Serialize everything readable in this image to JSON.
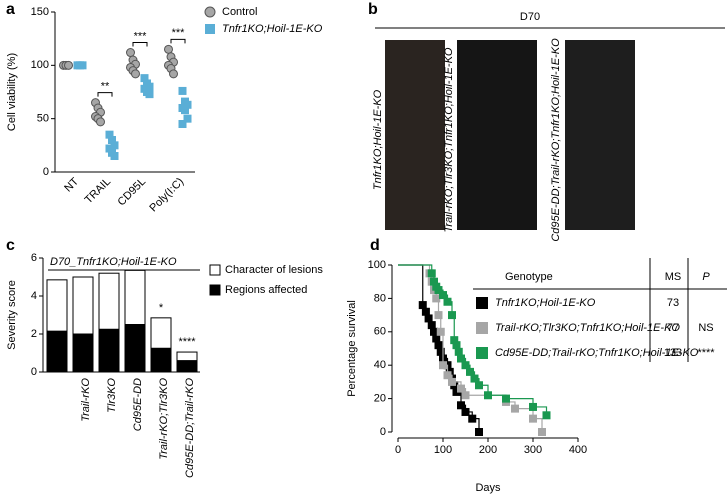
{
  "panel_letters": [
    "a",
    "b",
    "c",
    "d"
  ],
  "chart_data": [
    {
      "type": "dotplot",
      "y_label": "Cell viability (%)",
      "categories": [
        "NT",
        "TRAIL",
        "CD95L",
        "Poly(I:C)"
      ],
      "series": [
        {
          "name": "Control",
          "color": "#a6a6a6",
          "marker": "circle",
          "values": [
            [
              100,
              100,
              100
            ],
            [
              65,
              60,
              56,
              52,
              50,
              47
            ],
            [
              112,
              105,
              101,
              98,
              95,
              92
            ],
            [
              115,
              108,
              103,
              100,
              97,
              92
            ]
          ]
        },
        {
          "name": "Tnfr1KO;Hoil-1E-KO",
          "color": "#5aaed6",
          "marker": "square",
          "values": [
            [
              100,
              100,
              100
            ],
            [
              35,
              30,
              25,
              22,
              18,
              15
            ],
            [
              88,
              83,
              80,
              78,
              75,
              73
            ],
            [
              76,
              66,
              63,
              60,
              58,
              50,
              45
            ]
          ]
        }
      ],
      "ylim": [
        0,
        150
      ],
      "yticks": [
        0,
        50,
        100,
        150
      ],
      "annotations": [
        {
          "text": "**",
          "category": 1
        },
        {
          "text": "***",
          "category": 2
        },
        {
          "text": "***",
          "category": 3
        }
      ]
    },
    {
      "type": "stacked-bar",
      "title": "D70_Tnfr1KO;Hoil-1E-KO",
      "y_label": "Severity score",
      "categories": [
        null,
        "Trail-rKO",
        "Tlr3KO",
        "Cd95E-DD",
        "Trail-rKO;Tlr3KO",
        "Cd95E-DD;Trail-rKO"
      ],
      "series": [
        {
          "name": "Regions affected",
          "color": "#000000",
          "values": [
            2.15,
            2.0,
            2.25,
            2.5,
            1.25,
            0.6
          ]
        },
        {
          "name": "Character of lesions",
          "color": "#ffffff",
          "values": [
            2.7,
            3.0,
            2.95,
            2.85,
            1.6,
            0.45
          ]
        }
      ],
      "ylim": [
        0,
        6
      ],
      "yticks": [
        0,
        2,
        4,
        6
      ],
      "annotations": [
        {
          "text": "*",
          "category": 4
        },
        {
          "text": "****",
          "category": 5
        }
      ]
    },
    {
      "type": "survival",
      "x_label": "Days",
      "y_label": "Percentage survival",
      "xlim": [
        0,
        400
      ],
      "xticks": [
        0,
        100,
        200,
        300,
        400
      ],
      "ylim": [
        0,
        100
      ],
      "yticks": [
        0,
        20,
        40,
        60,
        80,
        100
      ],
      "series": [
        {
          "color": "#000000",
          "x": [
            0,
            55,
            62,
            68,
            75,
            80,
            85,
            90,
            95,
            100,
            110,
            115,
            120,
            125,
            130,
            140,
            150,
            165,
            180
          ],
          "values": [
            100,
            76,
            72,
            68,
            64,
            60,
            56,
            52,
            48,
            44,
            40,
            36,
            32,
            28,
            24,
            16,
            12,
            8,
            0
          ]
        },
        {
          "color": "#a6a6a6",
          "x": [
            0,
            70,
            75,
            80,
            85,
            90,
            95,
            100,
            110,
            120,
            140,
            150,
            240,
            260,
            300,
            320
          ],
          "values": [
            100,
            95,
            90,
            85,
            80,
            70,
            60,
            40,
            34,
            30,
            26,
            22,
            18,
            14,
            8,
            0
          ]
        },
        {
          "color": "#1a9850",
          "x": [
            0,
            75,
            80,
            85,
            90,
            100,
            110,
            120,
            125,
            130,
            135,
            140,
            150,
            160,
            170,
            180,
            200,
            240,
            300,
            330
          ],
          "values": [
            100,
            95,
            90,
            87,
            85,
            82,
            78,
            70,
            55,
            52,
            48,
            44,
            40,
            36,
            32,
            28,
            22,
            20,
            15,
            10
          ]
        }
      ],
      "table": {
        "header": [
          "Genotype",
          "MS",
          "P"
        ],
        "rows": [
          {
            "genotype": "Tnfr1KO;Hoil-1E-KO",
            "ms": "73"
          },
          {
            "genotype": "Trail-rKO;Tlr3KO;Tnfr1KO;Hoil-1E-KO",
            "ms": "77",
            "p": "NS"
          },
          {
            "genotype": "Cd95E-DD;Trail-rKO;Tnfr1KO;Hoil-1E-KO",
            "ms": "133",
            "p": "****"
          }
        ]
      }
    }
  ],
  "photo_panel": {
    "title": "D70",
    "labels": [
      "Tnfr1KO;Hoil-1E-KO",
      "Trail-rKO;Tlr3KO;Tnfr1KO;Hoil-1E-KO",
      "Cd95E-DD;Trail-rKO;Tnfr1KO;Hoil-1E-KO"
    ]
  }
}
